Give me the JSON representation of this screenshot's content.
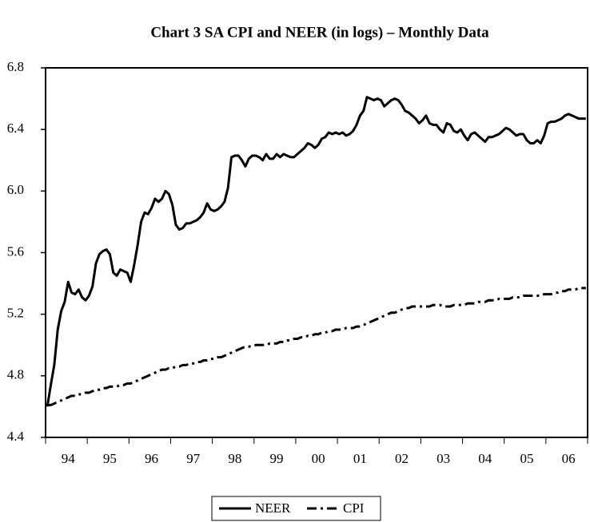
{
  "chart_data": {
    "type": "line",
    "title": "Chart 3 SA CPI and NEER (in logs) – Monthly Data",
    "categories": [
      null,
      null,
      null,
      null,
      null,
      null,
      "94",
      null,
      null,
      null,
      null,
      null,
      null,
      null,
      null,
      null,
      null,
      null,
      "95",
      null,
      null,
      null,
      null,
      null,
      null,
      null,
      null,
      null,
      null,
      null,
      "96",
      null,
      null,
      null,
      null,
      null,
      null,
      null,
      null,
      null,
      null,
      null,
      "97",
      null,
      null,
      null,
      null,
      null,
      null,
      null,
      null,
      null,
      null,
      null,
      "98",
      null,
      null,
      null,
      null,
      null,
      null,
      null,
      null,
      null,
      null,
      null,
      "99",
      null,
      null,
      null,
      null,
      null,
      null,
      null,
      null,
      null,
      null,
      null,
      "00",
      null,
      null,
      null,
      null,
      null,
      null,
      null,
      null,
      null,
      null,
      null,
      "01",
      null,
      null,
      null,
      null,
      null,
      null,
      null,
      null,
      null,
      null,
      null,
      "02",
      null,
      null,
      null,
      null,
      null,
      null,
      null,
      null,
      null,
      null,
      null,
      "03",
      null,
      null,
      null,
      null,
      null,
      null,
      null,
      null,
      null,
      null,
      null,
      "04",
      null,
      null,
      null,
      null,
      null,
      null,
      null,
      null,
      null,
      null,
      null,
      "05",
      null,
      null,
      null,
      null,
      null,
      null,
      null,
      null,
      null,
      null,
      null,
      "06",
      null,
      null,
      null,
      null,
      null
    ],
    "series": [
      {
        "name": "NEER",
        "color": "#000000",
        "style": "solid",
        "values": [
          4.6,
          4.74,
          4.87,
          5.1,
          5.22,
          5.28,
          5.41,
          5.34,
          5.33,
          5.36,
          5.31,
          5.29,
          5.32,
          5.38,
          5.53,
          5.59,
          5.61,
          5.62,
          5.59,
          5.47,
          5.45,
          5.49,
          5.48,
          5.47,
          5.41,
          5.52,
          5.65,
          5.8,
          5.86,
          5.85,
          5.89,
          5.95,
          5.93,
          5.95,
          6.0,
          5.98,
          5.91,
          5.78,
          5.75,
          5.76,
          5.79,
          5.79,
          5.8,
          5.81,
          5.83,
          5.86,
          5.92,
          5.88,
          5.87,
          5.88,
          5.9,
          5.93,
          6.02,
          6.22,
          6.23,
          6.23,
          6.2,
          6.16,
          6.21,
          6.23,
          6.23,
          6.22,
          6.2,
          6.24,
          6.21,
          6.21,
          6.24,
          6.22,
          6.24,
          6.23,
          6.22,
          6.22,
          6.24,
          6.26,
          6.28,
          6.31,
          6.3,
          6.28,
          6.3,
          6.34,
          6.35,
          6.38,
          6.37,
          6.38,
          6.37,
          6.38,
          6.36,
          6.37,
          6.39,
          6.43,
          6.49,
          6.52,
          6.61,
          6.6,
          6.59,
          6.6,
          6.59,
          6.55,
          6.57,
          6.59,
          6.6,
          6.59,
          6.56,
          6.52,
          6.51,
          6.49,
          6.47,
          6.44,
          6.46,
          6.49,
          6.44,
          6.43,
          6.43,
          6.4,
          6.38,
          6.44,
          6.43,
          6.39,
          6.38,
          6.4,
          6.36,
          6.33,
          6.37,
          6.38,
          6.36,
          6.34,
          6.32,
          6.35,
          6.35,
          6.36,
          6.37,
          6.39,
          6.41,
          6.4,
          6.38,
          6.36,
          6.37,
          6.37,
          6.33,
          6.31,
          6.31,
          6.33,
          6.31,
          6.36,
          6.44,
          6.45,
          6.45,
          6.46,
          6.47,
          6.49,
          6.5,
          6.49,
          6.48,
          6.47,
          6.47,
          6.47
        ]
      },
      {
        "name": "CPI",
        "color": "#000000",
        "style": "dashed",
        "values": [
          4.61,
          4.61,
          4.62,
          4.63,
          4.64,
          4.65,
          4.66,
          4.67,
          4.67,
          4.68,
          4.68,
          4.69,
          4.69,
          4.7,
          4.71,
          4.71,
          4.72,
          4.72,
          4.73,
          4.73,
          4.73,
          4.74,
          4.74,
          4.75,
          4.75,
          4.76,
          4.77,
          4.78,
          4.79,
          4.8,
          4.81,
          4.82,
          4.83,
          4.84,
          4.84,
          4.85,
          4.85,
          4.86,
          4.86,
          4.87,
          4.87,
          4.88,
          4.88,
          4.89,
          4.89,
          4.9,
          4.9,
          4.91,
          4.91,
          4.92,
          4.92,
          4.93,
          4.94,
          4.95,
          4.96,
          4.97,
          4.98,
          4.99,
          4.99,
          4.99,
          5.0,
          5.0,
          5.0,
          5.0,
          5.01,
          5.01,
          5.01,
          5.02,
          5.02,
          5.03,
          5.03,
          5.04,
          5.04,
          5.05,
          5.05,
          5.06,
          5.06,
          5.07,
          5.07,
          5.08,
          5.08,
          5.09,
          5.09,
          5.1,
          5.1,
          5.1,
          5.11,
          5.11,
          5.11,
          5.12,
          5.12,
          5.13,
          5.14,
          5.15,
          5.16,
          5.17,
          5.18,
          5.19,
          5.2,
          5.21,
          5.21,
          5.22,
          5.23,
          5.24,
          5.24,
          5.25,
          5.25,
          5.25,
          5.25,
          5.25,
          5.25,
          5.26,
          5.26,
          5.26,
          5.25,
          5.25,
          5.25,
          5.26,
          5.26,
          5.26,
          5.26,
          5.27,
          5.27,
          5.27,
          5.28,
          5.28,
          5.28,
          5.29,
          5.29,
          5.29,
          5.3,
          5.3,
          5.3,
          5.3,
          5.31,
          5.31,
          5.31,
          5.32,
          5.32,
          5.32,
          5.32,
          5.32,
          5.32,
          5.33,
          5.33,
          5.33,
          5.34,
          5.34,
          5.35,
          5.35,
          5.36,
          5.36,
          5.36,
          5.37,
          5.37,
          5.37
        ]
      }
    ],
    "ylim": [
      4.4,
      6.8
    ],
    "yticks": [
      4.4,
      4.8,
      5.2,
      5.6,
      {
        "value": 6,
        "label": "6.0"
      },
      6.4,
      6.8
    ],
    "legend": "bottom"
  }
}
